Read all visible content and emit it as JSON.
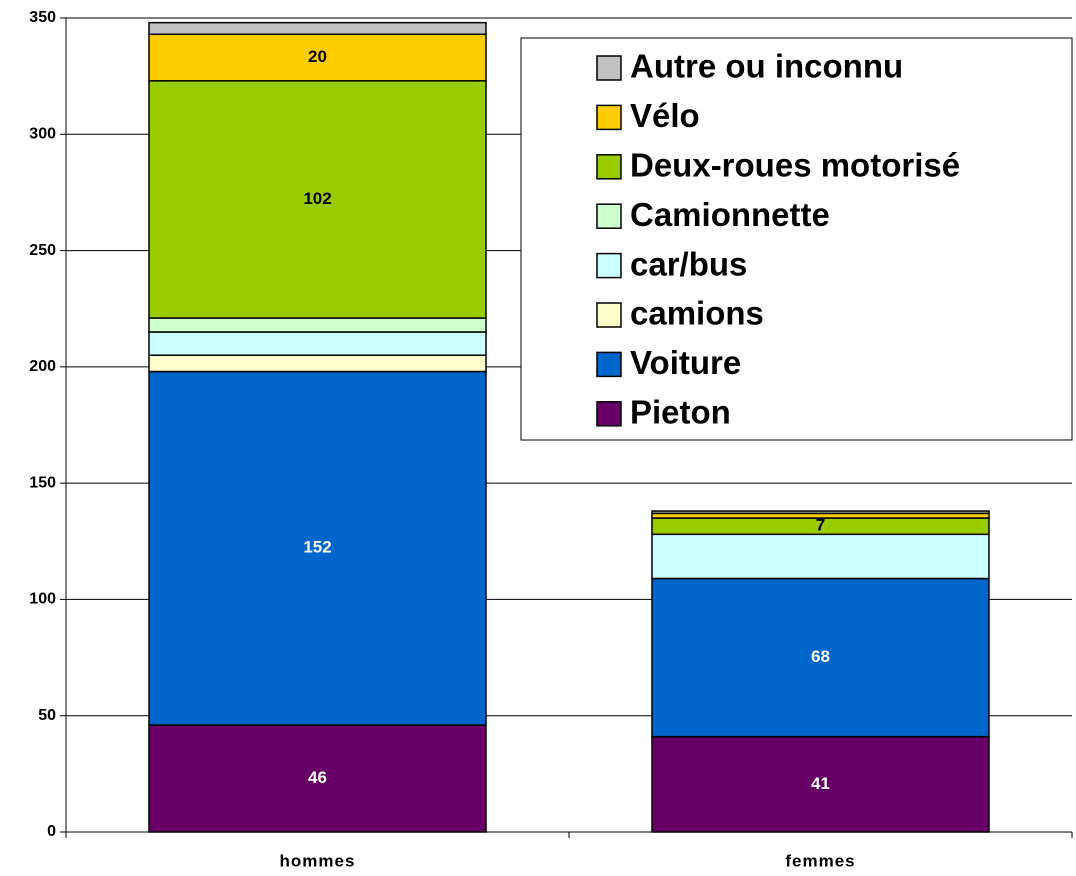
{
  "chart_data": {
    "type": "stacked_bar",
    "categories": [
      "hommes",
      "femmes"
    ],
    "series": [
      {
        "name": "Pieton",
        "color": "#660066",
        "values": [
          46,
          41
        ],
        "value_labels": [
          "46",
          "41"
        ]
      },
      {
        "name": "Voiture",
        "color": "#0066cc",
        "values": [
          152,
          68
        ],
        "value_labels": [
          "152",
          "68"
        ]
      },
      {
        "name": "camions",
        "color": "#ffffcc",
        "values": [
          7,
          0
        ]
      },
      {
        "name": "car/bus",
        "color": "#ccffff",
        "values": [
          10,
          19
        ]
      },
      {
        "name": "Camionnette",
        "color": "#ccffcc",
        "values": [
          6,
          0
        ]
      },
      {
        "name": "Deux-roues motorisé",
        "color": "#99cc00",
        "values": [
          102,
          7
        ],
        "value_labels": [
          "102",
          "7"
        ]
      },
      {
        "name": "Vélo",
        "color": "#ffcc00",
        "values": [
          20,
          2
        ],
        "value_labels": [
          "20",
          null
        ]
      },
      {
        "name": "Autre ou inconnu",
        "color": "#c0c0c0",
        "values": [
          5,
          1
        ]
      }
    ],
    "ylim": [
      0,
      350
    ],
    "yticks": [
      0,
      50,
      100,
      150,
      200,
      250,
      300,
      350
    ],
    "grid": true,
    "legend": "upper right"
  }
}
